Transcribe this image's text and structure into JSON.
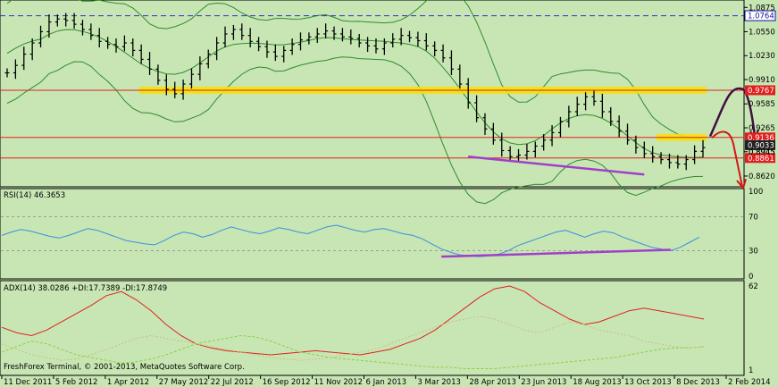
{
  "app": {
    "credit": "FreshForex Terminal, © 2001-2013, MetaQuotes Software Corp."
  },
  "colors": {
    "background": "#c8e6b4",
    "candles": "#000000",
    "bollinger": "#2e8b2e",
    "horizontal_red": "#e02020",
    "horizontal_blue": "#3030c0",
    "yellow_zone": "#f5e10a",
    "purple_trend": "#a040c8",
    "rsi_line": "#3a8ee0",
    "adx_line": "#e02020",
    "di_plus": "#8bd040",
    "di_minus": "#c8c080",
    "forecast_up": "#401040",
    "forecast_down": "#d01818",
    "price_tag_red": "#e02020",
    "price_tag_blue": "#1010a0"
  },
  "chart_data": [
    {
      "type": "candlestick",
      "title": "",
      "ylim": [
        0.85,
        1.095
      ],
      "y_ticks": [
        "1.0875",
        "1.0550",
        "1.0230",
        "0.9910",
        "0.9585",
        "0.9265",
        "0.8945",
        "0.8620"
      ],
      "x_ticks": [
        "11 Dec 2011",
        "5 Feb 2012",
        "1 Apr 2012",
        "27 May 2012",
        "22 Jul 2012",
        "16 Sep 2012",
        "11 Nov 2012",
        "6 Jan 2013",
        "3 Mar 2013",
        "28 Apr 2013",
        "23 Jun 2013",
        "18 Aug 2013",
        "13 Oct 2013",
        "8 Dec 2013",
        "2 Feb 2014"
      ],
      "close_series": [
        1.0,
        1.01,
        1.025,
        1.04,
        1.055,
        1.068,
        1.072,
        1.07,
        1.065,
        1.058,
        1.05,
        1.042,
        1.038,
        1.035,
        1.04,
        1.03,
        1.018,
        1.005,
        0.99,
        0.978,
        0.972,
        0.985,
        0.998,
        1.012,
        1.025,
        1.04,
        1.052,
        1.058,
        1.05,
        1.042,
        1.035,
        1.028,
        1.022,
        1.03,
        1.038,
        1.044,
        1.048,
        1.052,
        1.056,
        1.052,
        1.048,
        1.046,
        1.04,
        1.036,
        1.032,
        1.04,
        1.045,
        1.05,
        1.047,
        1.043,
        1.036,
        1.03,
        1.02,
        1.005,
        0.985,
        0.96,
        0.94,
        0.925,
        0.91,
        0.896,
        0.888,
        0.89,
        0.895,
        0.902,
        0.91,
        0.92,
        0.935,
        0.948,
        0.958,
        0.968,
        0.962,
        0.948,
        0.935,
        0.922,
        0.91,
        0.9,
        0.892,
        0.888,
        0.884,
        0.88,
        0.878,
        0.884,
        0.895,
        0.9
      ],
      "horizontal_levels": [
        {
          "value": 1.0764,
          "label": "1.0764",
          "style": "dashed-blue"
        },
        {
          "value": 0.9767,
          "label": "0.9767",
          "style": "red"
        },
        {
          "value": 0.9136,
          "label": "0.9136",
          "style": "red"
        },
        {
          "value": 0.9033,
          "label": "0.9033",
          "style": "current"
        },
        {
          "value": 0.8861,
          "label": "0.8861",
          "style": "red"
        }
      ],
      "partial_tick_label": "0.8945",
      "yellow_zones": [
        {
          "value": 0.9767,
          "x_from": "27 May 2012",
          "x_to": "end"
        },
        {
          "value": 0.9136,
          "x_from": "8 Dec 2013",
          "x_to": "end"
        }
      ]
    },
    {
      "type": "line",
      "title": "RSI(14) 46.3653",
      "ylim": [
        0,
        100
      ],
      "y_ticks": [
        "100",
        "70",
        "30",
        "0"
      ],
      "levels": [
        70,
        30
      ],
      "series": [
        {
          "name": "RSI(14)",
          "values": [
            48,
            52,
            55,
            53,
            50,
            47,
            45,
            48,
            52,
            56,
            54,
            50,
            46,
            42,
            40,
            38,
            37,
            42,
            48,
            52,
            50,
            46,
            49,
            54,
            58,
            55,
            52,
            50,
            53,
            57,
            55,
            52,
            50,
            54,
            58,
            60,
            57,
            54,
            52,
            55,
            56,
            53,
            50,
            48,
            44,
            38,
            32,
            28,
            25,
            24,
            23,
            24,
            26,
            30,
            36,
            40,
            44,
            48,
            52,
            54,
            50,
            46,
            50,
            53,
            51,
            46,
            42,
            38,
            34,
            32,
            30,
            34,
            40,
            46
          ]
        }
      ]
    },
    {
      "type": "line",
      "title": "ADX(14) 38.0286 +DI:17.7389 -DI:17.8749",
      "ylim": [
        1,
        62
      ],
      "y_ticks": [
        "62",
        "1"
      ],
      "series": [
        {
          "name": "ADX(14)",
          "values": [
            32,
            28,
            26,
            30,
            36,
            42,
            48,
            55,
            58,
            52,
            44,
            34,
            26,
            20,
            17,
            15,
            14,
            13,
            12,
            13,
            14,
            15,
            14,
            13,
            12,
            14,
            16,
            20,
            24,
            30,
            38,
            46,
            54,
            60,
            62,
            58,
            50,
            44,
            38,
            34,
            36,
            40,
            44,
            46,
            44,
            42,
            40,
            38
          ]
        },
        {
          "name": "+DI",
          "values": [
            14,
            18,
            22,
            20,
            16,
            12,
            10,
            8,
            6,
            7,
            9,
            12,
            16,
            20,
            22,
            24,
            26,
            25,
            22,
            18,
            14,
            12,
            10,
            9,
            8,
            7,
            6,
            5,
            4,
            3,
            3,
            2,
            2,
            2,
            3,
            4,
            5,
            6,
            7,
            8,
            9,
            10,
            12,
            14,
            16,
            17,
            17,
            18
          ]
        },
        {
          "name": "-DI",
          "values": [
            20,
            16,
            12,
            10,
            8,
            9,
            12,
            16,
            20,
            24,
            26,
            24,
            22,
            20,
            18,
            16,
            14,
            12,
            10,
            9,
            8,
            9,
            10,
            12,
            14,
            16,
            20,
            24,
            28,
            32,
            36,
            38,
            40,
            38,
            34,
            30,
            28,
            32,
            36,
            34,
            30,
            28,
            26,
            22,
            20,
            18,
            17,
            18
          ]
        }
      ]
    }
  ]
}
